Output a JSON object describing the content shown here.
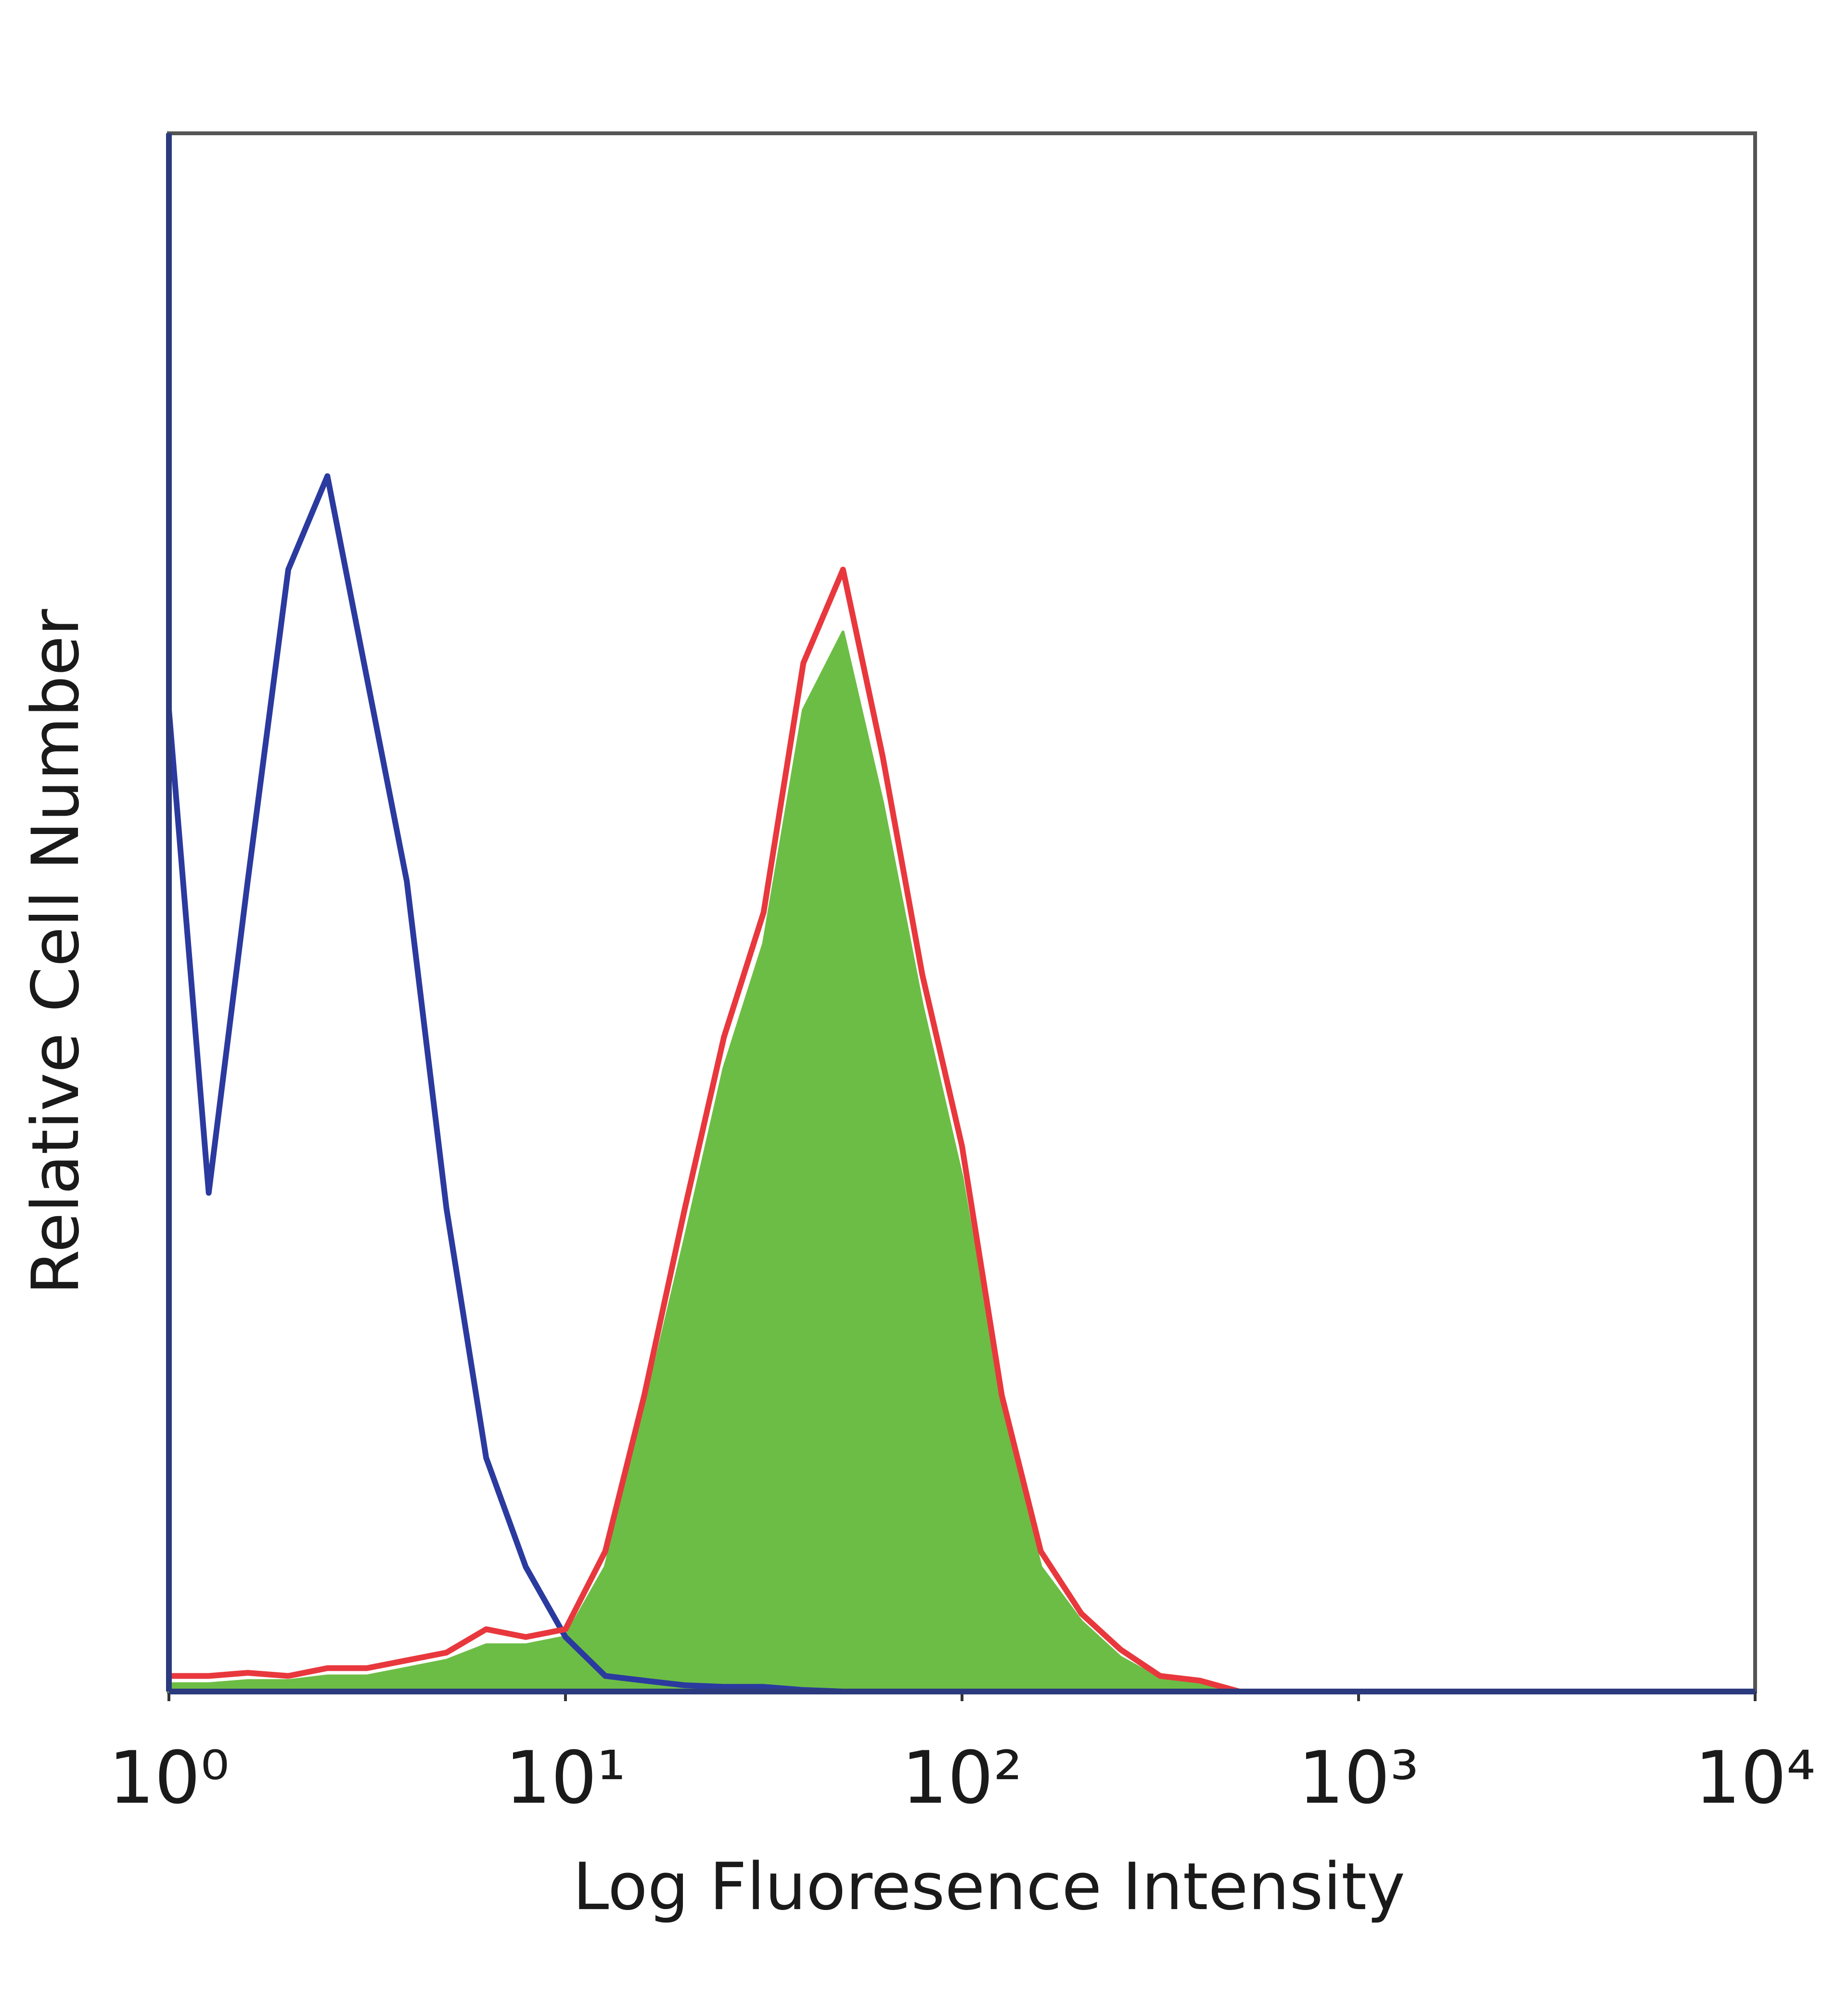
{
  "chart_data": {
    "type": "histogram-overlay",
    "xlabel": "Log Fluoresence Intensity",
    "ylabel": "Relative Cell Number",
    "xscale": "log",
    "xlim": [
      1,
      10000
    ],
    "xticks": [
      {
        "value": 1,
        "label": "10⁰"
      },
      {
        "value": 10,
        "label": "10¹"
      },
      {
        "value": 100,
        "label": "10²"
      },
      {
        "value": 1000,
        "label": "10³"
      },
      {
        "value": 10000,
        "label": "10⁴"
      }
    ],
    "ylim": [
      0,
      100
    ],
    "x": [
      1,
      1.26,
      1.58,
      2,
      2.51,
      3.16,
      3.98,
      5.01,
      6.31,
      7.94,
      10,
      12.6,
      15.8,
      20,
      25.1,
      31.6,
      39.8,
      50.1,
      63.1,
      79.4,
      100,
      126,
      158,
      200,
      251,
      316,
      398,
      501
    ],
    "series": [
      {
        "color": "#2b3a9e",
        "fill": false,
        "values": [
          63,
          32,
          52,
          72,
          78,
          65,
          52,
          31,
          15,
          8,
          3.5,
          1,
          0.7,
          0.4,
          0.3,
          0.3,
          0.1,
          0,
          0,
          0,
          0,
          0,
          0,
          0,
          0,
          0,
          0,
          0
        ]
      },
      {
        "color": "#e8383d",
        "fill": false,
        "values": [
          1,
          1,
          1.2,
          1,
          1.5,
          1.5,
          2,
          2.5,
          4,
          3.5,
          4,
          9,
          19,
          31,
          42,
          50,
          66,
          72,
          60,
          46,
          35,
          19,
          9,
          5,
          2.7,
          1,
          0.7,
          0
        ]
      },
      {
        "color": "#6cbd45",
        "fill": true,
        "values": [
          0.5,
          0.5,
          0.7,
          0.7,
          1,
          1,
          1.5,
          2,
          3,
          3,
          3.5,
          8,
          18,
          29,
          40,
          48,
          63,
          68,
          57,
          44,
          33,
          18,
          8,
          4.5,
          2.2,
          0.8,
          0.5,
          0
        ]
      }
    ]
  }
}
